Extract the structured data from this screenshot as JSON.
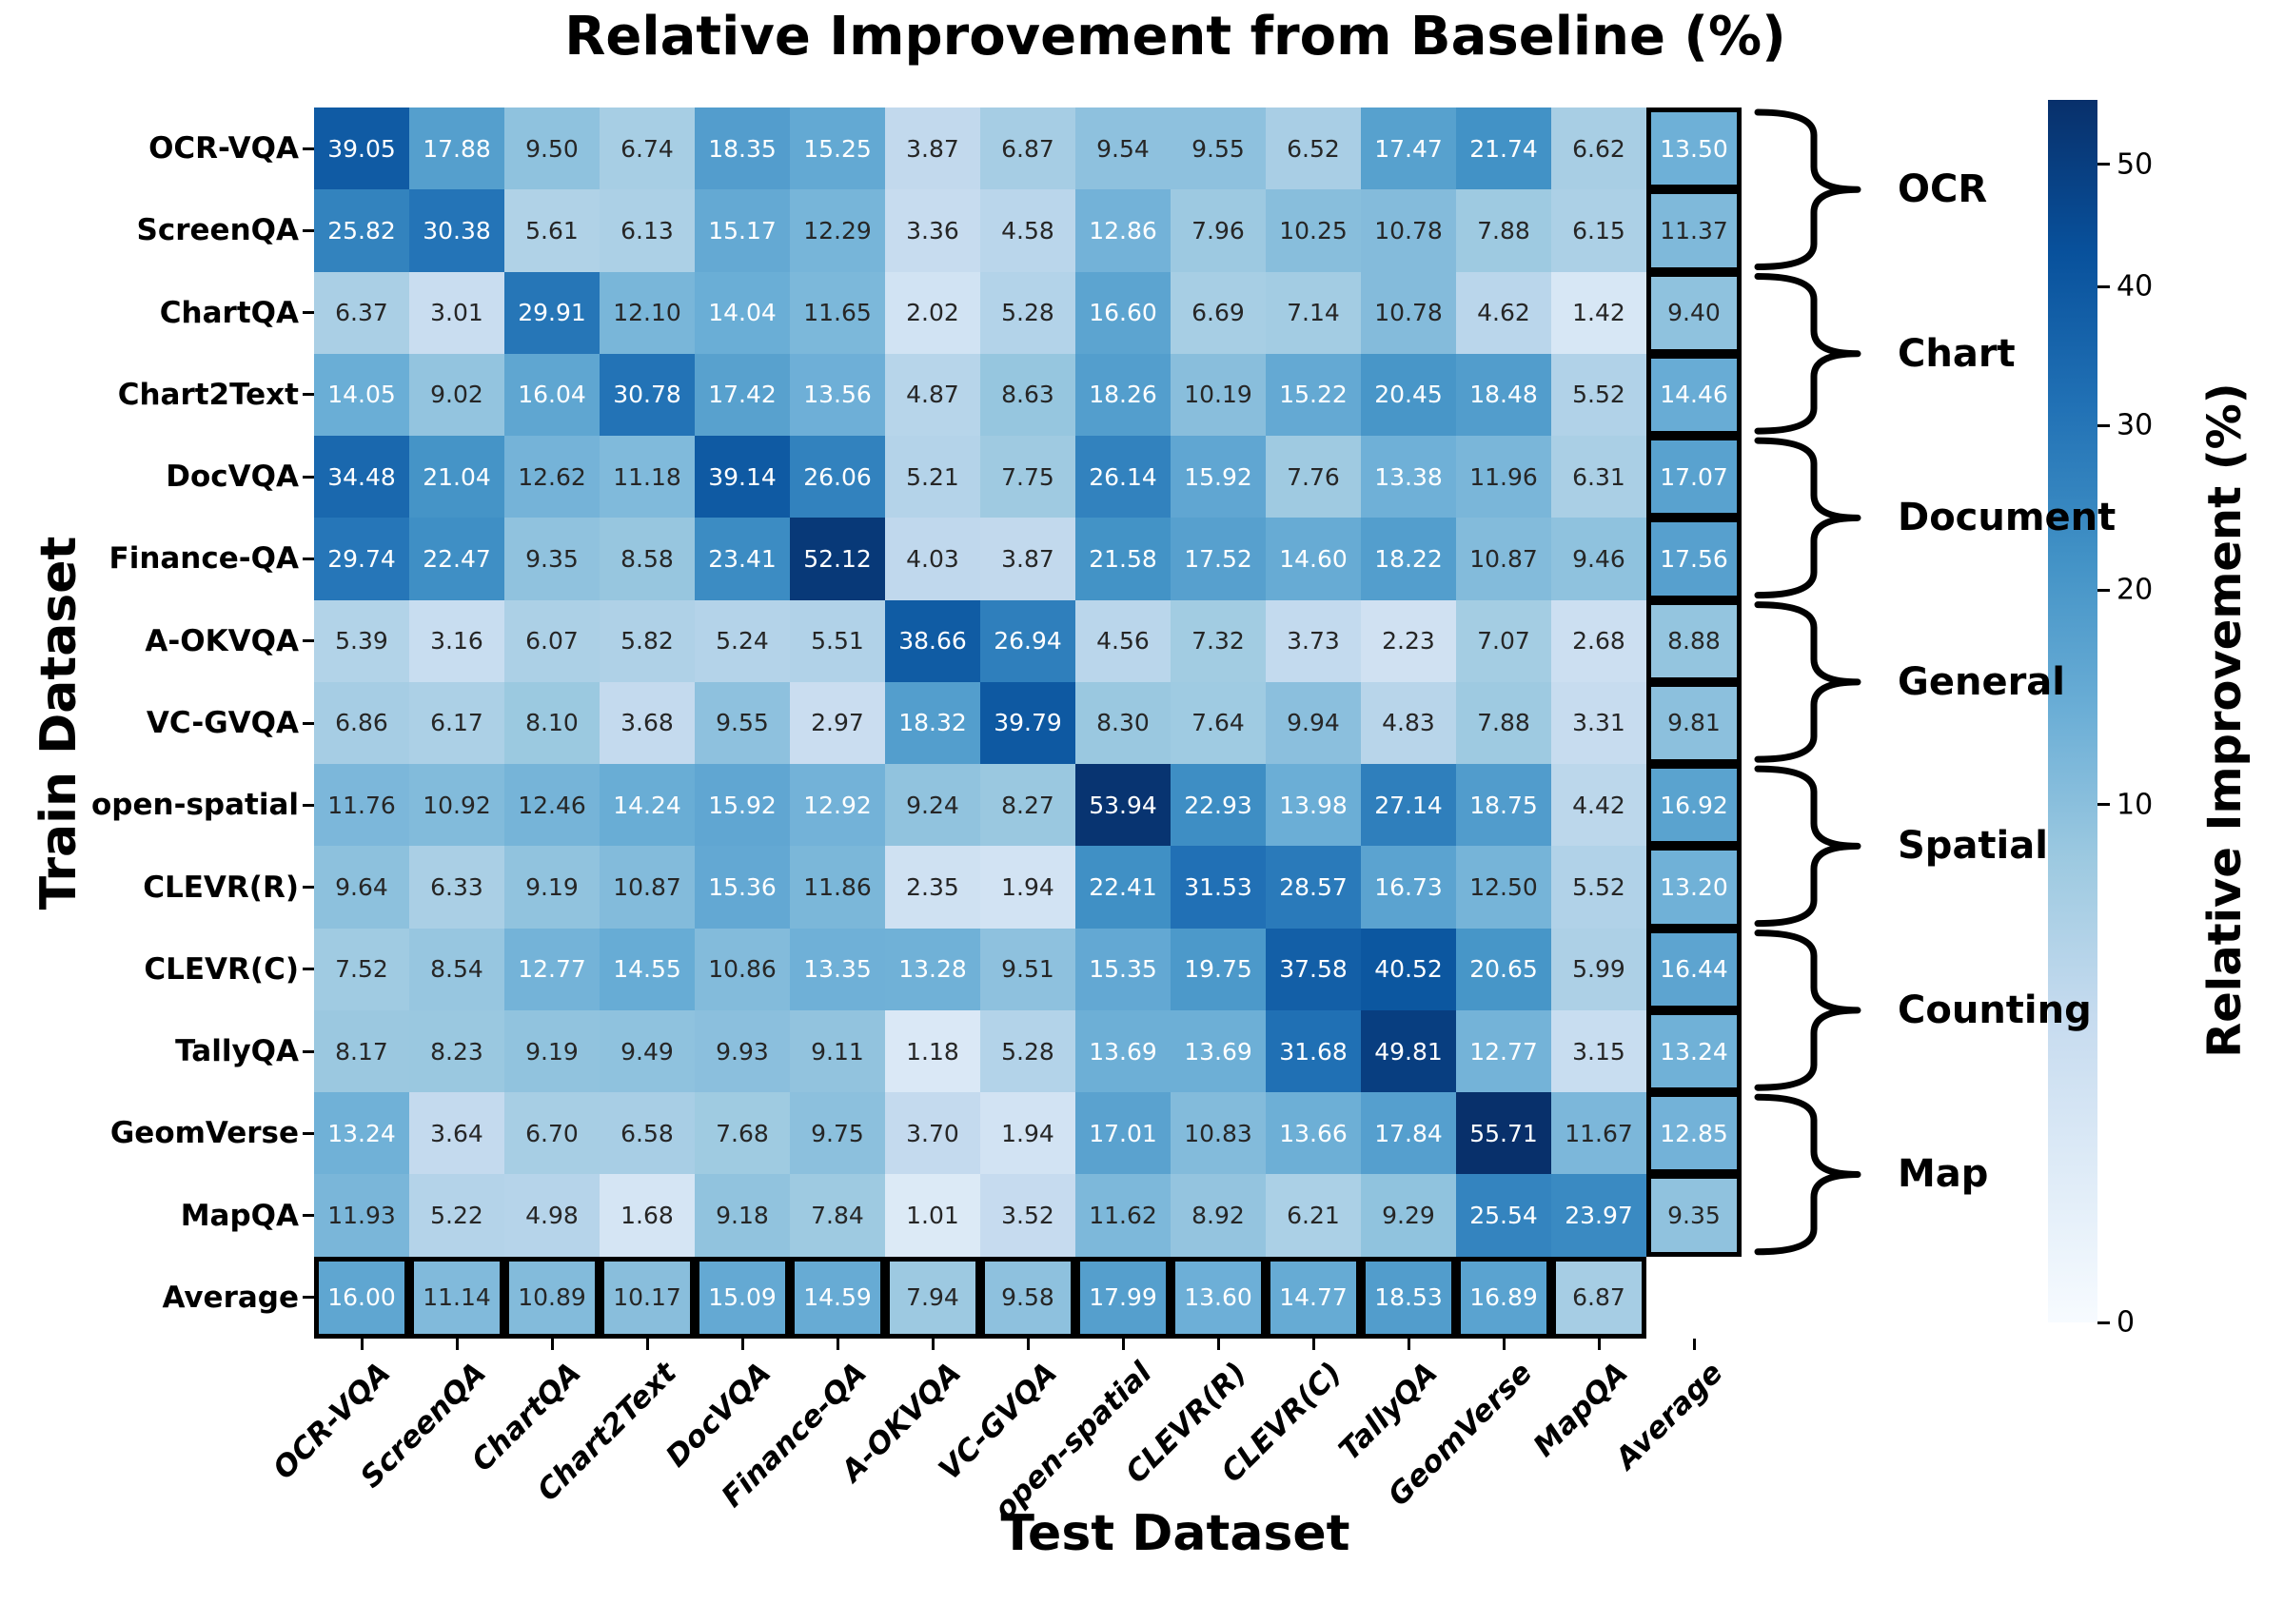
{
  "chart_data": {
    "type": "heatmap",
    "title": "Relative Improvement from Baseline (%)",
    "xlabel": "Test Dataset",
    "ylabel": "Train Dataset",
    "x_categories": [
      "OCR-VQA",
      "ScreenQA",
      "ChartQA",
      "Chart2Text",
      "DocVQA",
      "Finance-QA",
      "A-OKVQA",
      "VC-GVQA",
      "open-spatial",
      "CLEVR(R)",
      "CLEVR(C)",
      "TallyQA",
      "GeomVerse",
      "MapQA",
      "Average"
    ],
    "y_categories": [
      "OCR-VQA",
      "ScreenQA",
      "ChartQA",
      "Chart2Text",
      "DocVQA",
      "Finance-QA",
      "A-OKVQA",
      "VC-GVQA",
      "open-spatial",
      "CLEVR(R)",
      "CLEVR(C)",
      "TallyQA",
      "GeomVerse",
      "MapQA",
      "Average"
    ],
    "values": [
      [
        39.05,
        17.88,
        9.5,
        6.74,
        18.35,
        15.25,
        3.87,
        6.87,
        9.54,
        9.55,
        6.52,
        17.47,
        21.74,
        6.62,
        13.5
      ],
      [
        25.82,
        30.38,
        5.61,
        6.13,
        15.17,
        12.29,
        3.36,
        4.58,
        12.86,
        7.96,
        10.25,
        10.78,
        7.88,
        6.15,
        11.37
      ],
      [
        6.37,
        3.01,
        29.91,
        12.1,
        14.04,
        11.65,
        2.02,
        5.28,
        16.6,
        6.69,
        7.14,
        10.78,
        4.62,
        1.42,
        9.4
      ],
      [
        14.05,
        9.02,
        16.04,
        30.78,
        17.42,
        13.56,
        4.87,
        8.63,
        18.26,
        10.19,
        15.22,
        20.45,
        18.48,
        5.52,
        14.46
      ],
      [
        34.48,
        21.04,
        12.62,
        11.18,
        39.14,
        26.06,
        5.21,
        7.75,
        26.14,
        15.92,
        7.76,
        13.38,
        11.96,
        6.31,
        17.07
      ],
      [
        29.74,
        22.47,
        9.35,
        8.58,
        23.41,
        52.12,
        4.03,
        3.87,
        21.58,
        17.52,
        14.6,
        18.22,
        10.87,
        9.46,
        17.56
      ],
      [
        5.39,
        3.16,
        6.07,
        5.82,
        5.24,
        5.51,
        38.66,
        26.94,
        4.56,
        7.32,
        3.73,
        2.23,
        7.07,
        2.68,
        8.88
      ],
      [
        6.86,
        6.17,
        8.1,
        3.68,
        9.55,
        2.97,
        18.32,
        39.79,
        8.3,
        7.64,
        9.94,
        4.83,
        7.88,
        3.31,
        9.81
      ],
      [
        11.76,
        10.92,
        12.46,
        14.24,
        15.92,
        12.92,
        9.24,
        8.27,
        53.94,
        22.93,
        13.98,
        27.14,
        18.75,
        4.42,
        16.92
      ],
      [
        9.64,
        6.33,
        9.19,
        10.87,
        15.36,
        11.86,
        2.35,
        1.94,
        22.41,
        31.53,
        28.57,
        16.73,
        12.5,
        5.52,
        13.2
      ],
      [
        7.52,
        8.54,
        12.77,
        14.55,
        10.86,
        13.35,
        13.28,
        9.51,
        15.35,
        19.75,
        37.58,
        40.52,
        20.65,
        5.99,
        16.44
      ],
      [
        8.17,
        8.23,
        9.19,
        9.49,
        9.93,
        9.11,
        1.18,
        5.28,
        13.69,
        13.69,
        31.68,
        49.81,
        12.77,
        3.15,
        13.24
      ],
      [
        13.24,
        3.64,
        6.7,
        6.58,
        7.68,
        9.75,
        3.7,
        1.94,
        17.01,
        10.83,
        13.66,
        17.84,
        55.71,
        11.67,
        12.85
      ],
      [
        11.93,
        5.22,
        4.98,
        1.68,
        9.18,
        7.84,
        1.01,
        3.52,
        11.62,
        8.92,
        6.21,
        9.29,
        25.54,
        23.97,
        9.35
      ],
      [
        16.0,
        11.14,
        10.89,
        10.17,
        15.09,
        14.59,
        7.94,
        9.58,
        17.99,
        13.6,
        14.77,
        18.53,
        16.89,
        6.87,
        null
      ]
    ],
    "average_row_label": "Average",
    "average_col_label": "Average",
    "row_groups": [
      {
        "label": "OCR",
        "rows": [
          "OCR-VQA",
          "ScreenQA"
        ]
      },
      {
        "label": "Chart",
        "rows": [
          "ChartQA",
          "Chart2Text"
        ]
      },
      {
        "label": "Document",
        "rows": [
          "DocVQA",
          "Finance-QA"
        ]
      },
      {
        "label": "General",
        "rows": [
          "A-OKVQA",
          "VC-GVQA"
        ]
      },
      {
        "label": "Spatial",
        "rows": [
          "open-spatial",
          "CLEVR(R)"
        ]
      },
      {
        "label": "Counting",
        "rows": [
          "CLEVR(C)",
          "TallyQA"
        ]
      },
      {
        "label": "Map",
        "rows": [
          "GeomVerse",
          "MapQA"
        ]
      }
    ],
    "colorbar": {
      "label": "Relative Improvement (%)",
      "ticks": [
        0,
        10,
        20,
        30,
        40,
        50
      ],
      "vmin": 0,
      "vmax": 55.71,
      "scale": "sqrt",
      "colormap": "Blues",
      "anchors": [
        [
          0.9686,
          0.9843,
          1.0
        ],
        [
          0.8706,
          0.9216,
          0.9686
        ],
        [
          0.7765,
          0.8588,
          0.9373
        ],
        [
          0.6196,
          0.7922,
          0.8824
        ],
        [
          0.4196,
          0.6824,
          0.8392
        ],
        [
          0.2588,
          0.5725,
          0.7765
        ],
        [
          0.1294,
          0.4431,
          0.7098
        ],
        [
          0.0314,
          0.3176,
          0.6118
        ],
        [
          0.0314,
          0.1882,
          0.4196
        ]
      ]
    },
    "annotation_colors": {
      "dark_text": "#262626",
      "light_text": "#ffffff",
      "luminance_threshold": 0.408
    },
    "grid": false,
    "legend_position": "right-colorbar"
  }
}
